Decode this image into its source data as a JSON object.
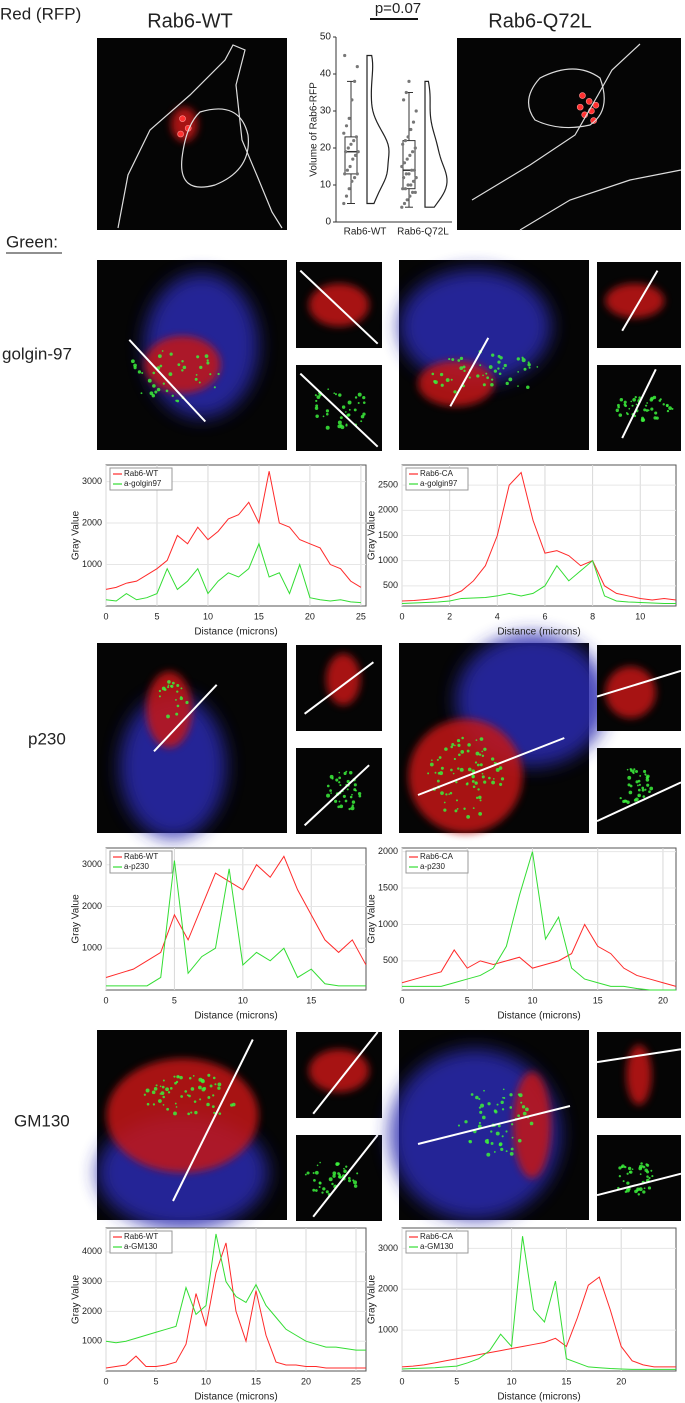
{
  "header": {
    "red_label": "Red (RFP)",
    "left_title": "Rab6-WT",
    "right_title": "Rab6-Q72L",
    "green_label": "Green:"
  },
  "row_labels": [
    "golgin-97",
    "p230",
    "GM130"
  ],
  "chart_data": [
    {
      "type": "box",
      "ylabel": "Volume of Rab6-RFP",
      "annotation": "p=0.07",
      "categories": [
        "Rab6-WT",
        "Rab6-Q72L"
      ],
      "ylim": [
        0,
        50
      ],
      "yticks": [
        0,
        10,
        20,
        30,
        40,
        50
      ],
      "color": "#333333",
      "boxes": [
        {
          "whisker_low": 5,
          "q1": 13,
          "median": 19,
          "q3": 23,
          "whisker_high": 38
        },
        {
          "whisker_low": 4,
          "q1": 9,
          "median": 14,
          "q3": 22,
          "whisker_high": 35
        }
      ],
      "points": [
        [
          5,
          7,
          9,
          11,
          12,
          13,
          13,
          14,
          15,
          17,
          18,
          19,
          19,
          20,
          21,
          22,
          23,
          24,
          26,
          28,
          33,
          38,
          42,
          45
        ],
        [
          4,
          5,
          6,
          7,
          8,
          8,
          9,
          9,
          10,
          10,
          11,
          12,
          12,
          13,
          13,
          14,
          14,
          15,
          16,
          17,
          18,
          19,
          20,
          21,
          22,
          23,
          25,
          27,
          30,
          33,
          35,
          38
        ]
      ]
    },
    {
      "type": "line",
      "xlabel": "Distance (microns)",
      "ylabel": "Gray Value",
      "grid": true,
      "legend": "top-left",
      "xlim": [
        0,
        25.5
      ],
      "xticks": [
        0,
        5,
        10,
        15,
        20,
        25
      ],
      "ylim": [
        0,
        3400
      ],
      "yticks": [
        1000,
        2000,
        3000
      ],
      "x": [
        0,
        1,
        2,
        3,
        4,
        5,
        6,
        7,
        8,
        9,
        10,
        11,
        12,
        13,
        14,
        15,
        16,
        17,
        18,
        19,
        20,
        21,
        22,
        23,
        24,
        25
      ],
      "series": [
        {
          "name": "Rab6-WT",
          "color": "#ff2a2a",
          "values": [
            400,
            450,
            550,
            600,
            750,
            900,
            1100,
            1700,
            1500,
            1900,
            1600,
            1800,
            2100,
            2200,
            2500,
            2000,
            3250,
            2000,
            1900,
            1600,
            1500,
            1400,
            1000,
            900,
            600,
            450
          ]
        },
        {
          "name": "a-golgin97",
          "color": "#33dd33",
          "values": [
            150,
            120,
            300,
            150,
            200,
            300,
            900,
            400,
            600,
            900,
            300,
            600,
            800,
            700,
            900,
            1500,
            700,
            800,
            300,
            1000,
            200,
            150,
            120,
            150,
            100,
            80
          ]
        }
      ]
    },
    {
      "type": "line",
      "xlabel": "Distance (microns)",
      "ylabel": "Gray Value",
      "grid": true,
      "legend": "top-left",
      "xlim": [
        0,
        11.5
      ],
      "xticks": [
        0,
        2,
        4,
        6,
        8,
        10
      ],
      "ylim": [
        100,
        2900
      ],
      "yticks": [
        500,
        1000,
        1500,
        2000,
        2500
      ],
      "x": [
        0,
        0.5,
        1,
        1.5,
        2,
        2.5,
        3,
        3.5,
        4,
        4.5,
        5,
        5.5,
        6,
        6.5,
        7,
        7.5,
        8,
        8.5,
        9,
        9.5,
        10,
        10.5,
        11,
        11.5
      ],
      "series": [
        {
          "name": "Rab6-CA",
          "color": "#ff2a2a",
          "values": [
            200,
            210,
            230,
            260,
            300,
            400,
            600,
            900,
            1500,
            2500,
            2750,
            1800,
            1150,
            1200,
            1100,
            900,
            1000,
            500,
            350,
            300,
            250,
            220,
            250,
            220
          ]
        },
        {
          "name": "a-golgin97",
          "color": "#33dd33",
          "values": [
            150,
            160,
            170,
            180,
            200,
            250,
            260,
            270,
            300,
            350,
            300,
            350,
            500,
            900,
            600,
            800,
            1000,
            300,
            200,
            180,
            170,
            160,
            150,
            150
          ]
        }
      ]
    },
    {
      "type": "line",
      "xlabel": "Distance (microns)",
      "ylabel": "Gray Value",
      "grid": true,
      "legend": "top-left",
      "xlim": [
        0,
        19
      ],
      "xticks": [
        0,
        5,
        10,
        15
      ],
      "ylim": [
        0,
        3400
      ],
      "yticks": [
        1000,
        2000,
        3000
      ],
      "x": [
        0,
        1,
        2,
        3,
        4,
        5,
        6,
        7,
        8,
        9,
        10,
        11,
        12,
        13,
        14,
        15,
        16,
        17,
        18,
        19
      ],
      "series": [
        {
          "name": "Rab6-WT",
          "color": "#ff2a2a",
          "values": [
            300,
            400,
            500,
            700,
            900,
            1800,
            1200,
            2000,
            2800,
            2600,
            2400,
            3000,
            2700,
            3200,
            2400,
            1800,
            1200,
            900,
            1200,
            600
          ]
        },
        {
          "name": "a-p230",
          "color": "#33dd33",
          "values": [
            100,
            100,
            100,
            100,
            300,
            3100,
            400,
            800,
            1000,
            2900,
            600,
            900,
            700,
            1000,
            300,
            500,
            150,
            100,
            100,
            100
          ]
        }
      ]
    },
    {
      "type": "line",
      "xlabel": "Distance (microns)",
      "ylabel": "Gray Value",
      "grid": true,
      "legend": "top-left",
      "xlim": [
        0,
        21
      ],
      "xticks": [
        0,
        5,
        10,
        15,
        20
      ],
      "ylim": [
        100,
        2050
      ],
      "yticks": [
        500,
        1000,
        1500,
        2000
      ],
      "x": [
        0,
        1,
        2,
        3,
        4,
        5,
        6,
        7,
        8,
        9,
        10,
        11,
        12,
        13,
        14,
        15,
        16,
        17,
        18,
        19,
        20,
        21
      ],
      "series": [
        {
          "name": "Rab6-CA",
          "color": "#ff2a2a",
          "values": [
            200,
            250,
            300,
            350,
            650,
            400,
            500,
            450,
            500,
            550,
            400,
            450,
            500,
            600,
            1000,
            700,
            600,
            400,
            300,
            250,
            200,
            150
          ]
        },
        {
          "name": "a-p230",
          "color": "#33dd33",
          "values": [
            150,
            150,
            150,
            150,
            200,
            250,
            300,
            400,
            700,
            1400,
            2000,
            800,
            1100,
            400,
            250,
            200,
            150,
            150,
            120,
            100,
            100,
            100
          ]
        }
      ]
    },
    {
      "type": "line",
      "xlabel": "Distance (microns)",
      "ylabel": "Gray Value",
      "grid": true,
      "legend": "top-left",
      "xlim": [
        0,
        26
      ],
      "xticks": [
        0,
        5,
        10,
        15,
        20,
        25
      ],
      "ylim": [
        0,
        4800
      ],
      "yticks": [
        1000,
        2000,
        3000,
        4000
      ],
      "x": [
        0,
        1,
        2,
        3,
        4,
        5,
        6,
        7,
        8,
        9,
        10,
        11,
        12,
        13,
        14,
        15,
        16,
        17,
        18,
        19,
        20,
        21,
        22,
        23,
        24,
        25,
        26
      ],
      "series": [
        {
          "name": "Rab6-WT",
          "color": "#ff2a2a",
          "values": [
            100,
            150,
            200,
            500,
            150,
            150,
            200,
            300,
            900,
            2600,
            1500,
            3300,
            4300,
            2000,
            1000,
            2700,
            1200,
            300,
            200,
            200,
            150,
            150,
            100,
            100,
            100,
            100,
            100
          ]
        },
        {
          "name": "a-GM130",
          "color": "#33dd33",
          "values": [
            1000,
            950,
            1000,
            1100,
            1200,
            1300,
            1400,
            1500,
            2800,
            1900,
            2200,
            4600,
            3000,
            2500,
            2300,
            2900,
            2200,
            1800,
            1400,
            1200,
            1000,
            900,
            800,
            800,
            750,
            700,
            700
          ]
        }
      ]
    },
    {
      "type": "line",
      "xlabel": "Distance (microns)",
      "ylabel": "Gray Value",
      "grid": true,
      "legend": "top-left",
      "xlim": [
        0,
        25
      ],
      "xticks": [
        0,
        5,
        10,
        15,
        20
      ],
      "ylim": [
        0,
        3500
      ],
      "yticks": [
        1000,
        2000,
        3000
      ],
      "x": [
        0,
        1,
        2,
        3,
        4,
        5,
        6,
        7,
        8,
        9,
        10,
        11,
        12,
        13,
        14,
        15,
        16,
        17,
        18,
        19,
        20,
        21,
        22,
        23,
        24,
        25
      ],
      "series": [
        {
          "name": "Rab6-CA",
          "color": "#ff2a2a",
          "values": [
            100,
            120,
            150,
            200,
            250,
            300,
            350,
            400,
            450,
            500,
            550,
            600,
            650,
            700,
            800,
            600,
            1300,
            2100,
            2300,
            1500,
            600,
            250,
            150,
            100,
            100,
            100
          ]
        },
        {
          "name": "a-GM130",
          "color": "#33dd33",
          "values": [
            50,
            60,
            70,
            80,
            100,
            120,
            200,
            300,
            500,
            900,
            600,
            3300,
            1500,
            1200,
            2200,
            300,
            200,
            100,
            80,
            60,
            50,
            40,
            40,
            40,
            40,
            40
          ]
        }
      ]
    }
  ]
}
